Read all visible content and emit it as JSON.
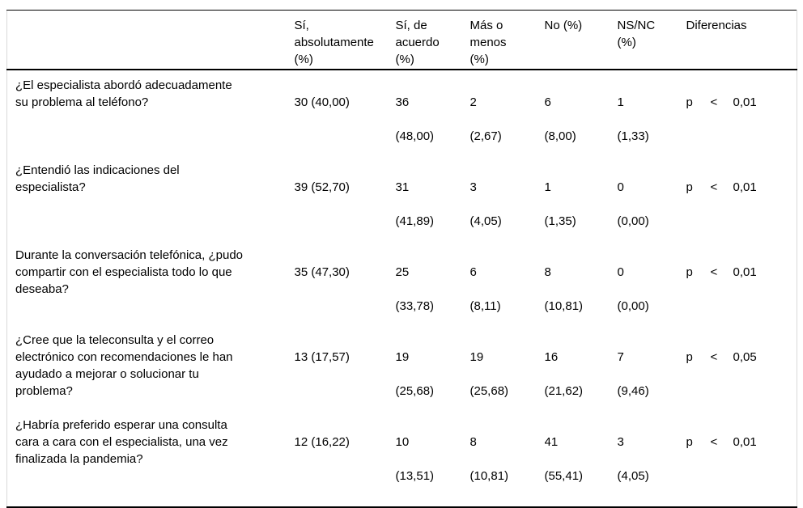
{
  "colors": {
    "background": "#ffffff",
    "text": "#000000",
    "rule_dark": "#000000",
    "rule_light": "#d9d9d9"
  },
  "table": {
    "headers": {
      "question": "",
      "si_absolutamente": "Sí,\nabsolutamente\n(%)",
      "si_de_acuerdo": "Sí, de\nacuerdo\n(%)",
      "mas_o_menos": "Más o\nmenos\n(%)",
      "no": "No (%)",
      "ns_nc": "NS/NC\n(%)",
      "diferencias": "Diferencias"
    },
    "rows": [
      {
        "question": "¿El especialista abordó adecuadamente\nsu problema al teléfono?",
        "values": [
          {
            "n": "30 (40,00)",
            "pct": ""
          },
          {
            "n": "36",
            "pct": "(48,00)"
          },
          {
            "n": "2",
            "pct": "(2,67)"
          },
          {
            "n": "6",
            "pct": "(8,00)"
          },
          {
            "n": "1",
            "pct": "(1,33)"
          }
        ],
        "diff": {
          "stat": "p",
          "operator": "<",
          "value": "0,01"
        }
      },
      {
        "question": "¿Entendió las indicaciones del\nespecialista?",
        "values": [
          {
            "n": "39 (52,70)",
            "pct": ""
          },
          {
            "n": "31",
            "pct": "(41,89)"
          },
          {
            "n": "3",
            "pct": "(4,05)"
          },
          {
            "n": "1",
            "pct": "(1,35)"
          },
          {
            "n": "0",
            "pct": "(0,00)"
          }
        ],
        "diff": {
          "stat": "p",
          "operator": "<",
          "value": "0,01"
        }
      },
      {
        "question": "Durante la conversación telefónica, ¿pudo\ncompartir con el especialista todo lo que\ndeseaba?",
        "values": [
          {
            "n": "35 (47,30)",
            "pct": ""
          },
          {
            "n": "25",
            "pct": "(33,78)"
          },
          {
            "n": "6",
            "pct": "(8,11)"
          },
          {
            "n": "8",
            "pct": "(10,81)"
          },
          {
            "n": "0",
            "pct": "(0,00)"
          }
        ],
        "diff": {
          "stat": "p",
          "operator": "<",
          "value": "0,01"
        }
      },
      {
        "question": "¿Cree que la teleconsulta y el correo\nelectrónico con recomendaciones le han\nayudado a mejorar o solucionar tu\nproblema?",
        "values": [
          {
            "n": "13 (17,57)",
            "pct": ""
          },
          {
            "n": "19",
            "pct": "(25,68)"
          },
          {
            "n": "19",
            "pct": "(25,68)"
          },
          {
            "n": "16",
            "pct": "(21,62)"
          },
          {
            "n": "7",
            "pct": "(9,46)"
          }
        ],
        "diff": {
          "stat": "p",
          "operator": "<",
          "value": "0,05"
        }
      },
      {
        "question": "¿Habría preferido esperar una consulta\ncara a cara con el especialista, una vez\nfinalizada la pandemia?",
        "values": [
          {
            "n": "12 (16,22)",
            "pct": ""
          },
          {
            "n": "10",
            "pct": "(13,51)"
          },
          {
            "n": "8",
            "pct": "(10,81)"
          },
          {
            "n": "41",
            "pct": "(55,41)"
          },
          {
            "n": "3",
            "pct": "(4,05)"
          }
        ],
        "diff": {
          "stat": "p",
          "operator": "<",
          "value": "0,01"
        }
      }
    ]
  }
}
